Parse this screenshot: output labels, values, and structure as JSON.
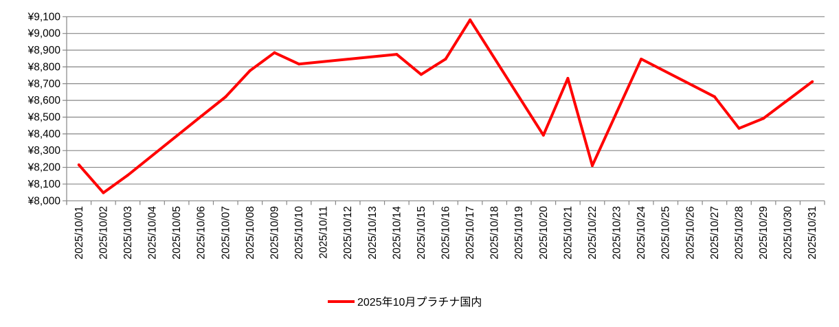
{
  "chart_data": {
    "type": "line",
    "title": "",
    "xlabel": "",
    "ylabel": "",
    "ylim": [
      8000,
      9100
    ],
    "ytick_step": 100,
    "ytick_prefix": "¥",
    "grid": true,
    "legend_placement": "bottom",
    "series_color": "#ff0000",
    "gridline_color": "#868686",
    "categories": [
      "2025/10/01",
      "2025/10/02",
      "2025/10/03",
      "2025/10/04",
      "2025/10/05",
      "2025/10/06",
      "2025/10/07",
      "2025/10/08",
      "2025/10/09",
      "2025/10/10",
      "2025/10/11",
      "2025/10/12",
      "2025/10/13",
      "2025/10/14",
      "2025/10/15",
      "2025/10/16",
      "2025/10/17",
      "2025/10/18",
      "2025/10/19",
      "2025/10/20",
      "2025/10/21",
      "2025/10/22",
      "2025/10/23",
      "2025/10/24",
      "2025/10/25",
      "2025/10/26",
      "2025/10/27",
      "2025/10/28",
      "2025/10/29",
      "2025/10/30",
      "2025/10/31"
    ],
    "series": [
      {
        "name": "2025年10月プラチナ国内",
        "values": [
          8215,
          8048,
          8153,
          null,
          null,
          8505,
          8621,
          8778,
          8885,
          8817,
          null,
          null,
          null,
          8875,
          8755,
          8847,
          9081,
          null,
          null,
          8392,
          8732,
          8210,
          8530,
          8847,
          null,
          null,
          8622,
          8433,
          8492,
          8602,
          8712
        ]
      }
    ]
  }
}
